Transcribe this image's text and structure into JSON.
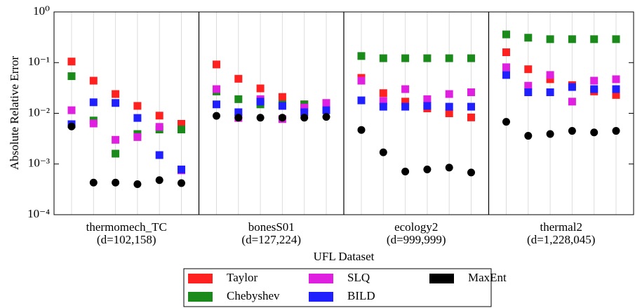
{
  "chart_data": {
    "type": "scatter",
    "xlabel": "UFL Dataset",
    "ylabel": "Absolute Relative Error",
    "categories": [
      "thermomech_TC",
      "bonesS01",
      "ecology2",
      "thermal2"
    ],
    "category_sublabels": [
      "(d=102,158)",
      "(d=127,224)",
      "(d=999,999)",
      "(d=1,228,045)"
    ],
    "log_scale": true,
    "grid": true,
    "legend_position": "lower center",
    "ylim": [
      0.0001,
      1
    ],
    "yticks": [
      {
        "value": 0.0001,
        "label": "10⁻⁴"
      },
      {
        "value": 0.001,
        "label": "10⁻³"
      },
      {
        "value": 0.01,
        "label": "10⁻²"
      },
      {
        "value": 0.1,
        "label": "10⁻¹"
      },
      {
        "value": 1,
        "label": "10⁰"
      }
    ],
    "series": [
      {
        "name": "Taylor",
        "color": "#ff2020",
        "marker": "square",
        "values": [
          [
            0.105,
            0.044,
            0.024,
            0.014,
            0.009,
            0.0062
          ],
          [
            0.092,
            0.048,
            0.031,
            0.021,
            0.015,
            0.012
          ],
          [
            0.05,
            0.025,
            0.017,
            0.0125,
            0.01,
            0.0083
          ],
          [
            0.16,
            0.074,
            0.047,
            0.036,
            0.027,
            0.023
          ]
        ]
      },
      {
        "name": "Chebyshev",
        "color": "#1a8a1a",
        "marker": "square",
        "values": [
          [
            0.054,
            0.0072,
            0.0016,
            0.0039,
            0.0048,
            0.0048
          ],
          [
            0.027,
            0.019,
            0.015,
            0.015,
            0.015,
            0.014
          ],
          [
            0.135,
            0.122,
            0.122,
            0.122,
            0.122,
            0.122
          ],
          [
            0.36,
            0.31,
            0.29,
            0.29,
            0.29,
            0.29
          ]
        ]
      },
      {
        "name": "SLQ",
        "color": "#e020e0",
        "marker": "square",
        "values": [
          [
            0.0115,
            0.0063,
            0.003,
            0.0034,
            0.0054,
            0.00075
          ],
          [
            0.03,
            0.0081,
            0.019,
            0.0077,
            0.013,
            0.016
          ],
          [
            0.044,
            0.0175,
            0.03,
            0.019,
            0.024,
            0.026
          ],
          [
            0.081,
            0.035,
            0.057,
            0.017,
            0.044,
            0.047
          ]
        ]
      },
      {
        "name": "BILD",
        "color": "#2020ff",
        "marker": "square",
        "values": [
          [
            0.0061,
            0.0165,
            0.016,
            0.0081,
            0.0015,
            0.00078
          ],
          [
            0.015,
            0.0105,
            0.017,
            0.014,
            0.0105,
            0.0115
          ],
          [
            0.018,
            0.0135,
            0.0135,
            0.014,
            0.0135,
            0.0135
          ],
          [
            0.057,
            0.026,
            0.026,
            0.033,
            0.03,
            0.03
          ]
        ]
      },
      {
        "name": "MaxEnt",
        "color": "#000000",
        "marker": "circle",
        "values": [
          [
            0.0055,
            0.00043,
            0.00043,
            0.0004,
            0.00048,
            0.00042
          ],
          [
            0.0089,
            0.0082,
            0.0082,
            0.0082,
            0.0082,
            0.0085
          ],
          [
            0.0047,
            0.0017,
            0.00071,
            0.00078,
            0.00085,
            0.00068
          ],
          [
            0.0068,
            0.0036,
            0.0039,
            0.0045,
            0.0042,
            0.0045
          ]
        ]
      }
    ]
  }
}
